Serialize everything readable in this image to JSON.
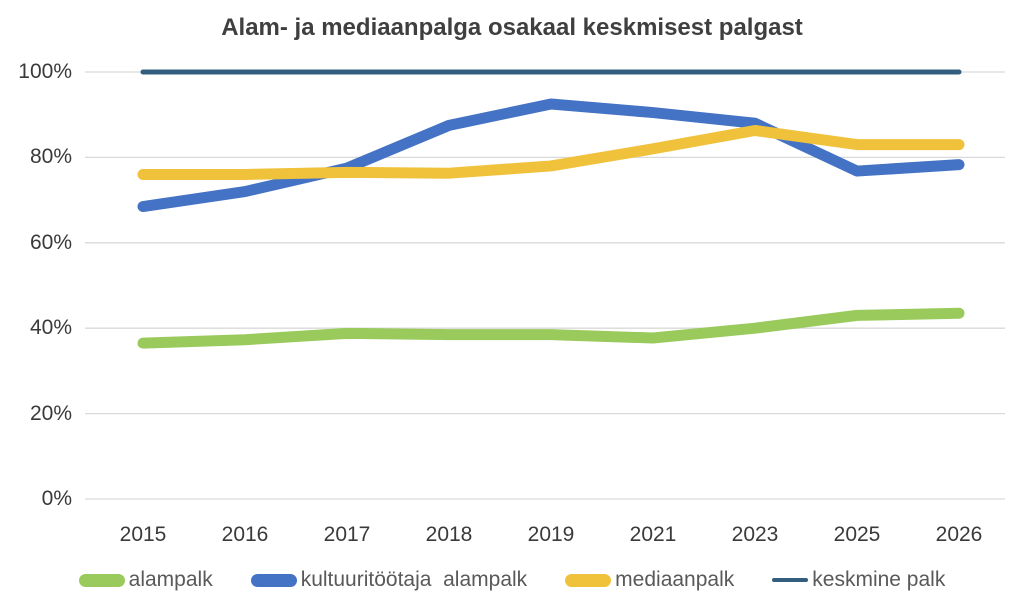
{
  "title": "Alam- ja mediaanpalga osakaal keskmisest palgast",
  "chart_data": {
    "type": "line",
    "title": "Alam- ja mediaanpalga osakaal keskmisest palgast",
    "categories": [
      "2015",
      "2016",
      "2017",
      "2018",
      "2019",
      "2021",
      "2023",
      "2025",
      "2026"
    ],
    "series": [
      {
        "name": "alampalk",
        "color": "#99CA5B",
        "stroke_width": 11,
        "values": [
          36.5,
          37.3,
          38.8,
          38.5,
          38.5,
          37.7,
          40.0,
          43.0,
          43.5
        ]
      },
      {
        "name": "kultuuritöötaja  alampalk",
        "color": "#4472C4",
        "stroke_width": 11,
        "values": [
          68.5,
          72.0,
          77.5,
          87.5,
          92.5,
          90.5,
          88.0,
          76.8,
          78.3
        ]
      },
      {
        "name": "mediaanpalk",
        "color": "#F0C23C",
        "stroke_width": 11,
        "values": [
          76.0,
          76.0,
          76.5,
          76.3,
          78.0,
          82.0,
          86.3,
          83.0,
          83.0
        ]
      },
      {
        "name": "keskmine palk",
        "color": "#335E7D",
        "stroke_width": 5,
        "values": [
          100,
          100,
          100,
          100,
          100,
          100,
          100,
          100,
          100
        ]
      }
    ],
    "y_ticks": [
      {
        "label": "0%",
        "value": 0
      },
      {
        "label": "20%",
        "value": 20
      },
      {
        "label": "40%",
        "value": 40
      },
      {
        "label": "60%",
        "value": 60
      },
      {
        "label": "80%",
        "value": 80
      },
      {
        "label": "100%",
        "value": 100
      }
    ],
    "ylim": [
      0,
      100
    ],
    "grid": true,
    "legend_position": "bottom",
    "colors": {
      "gridline": "#D9D9D9",
      "axis_text": "#3a3a3a",
      "legend_text": "#595959",
      "title_text": "#3f3f3f",
      "background": "#ffffff"
    }
  }
}
